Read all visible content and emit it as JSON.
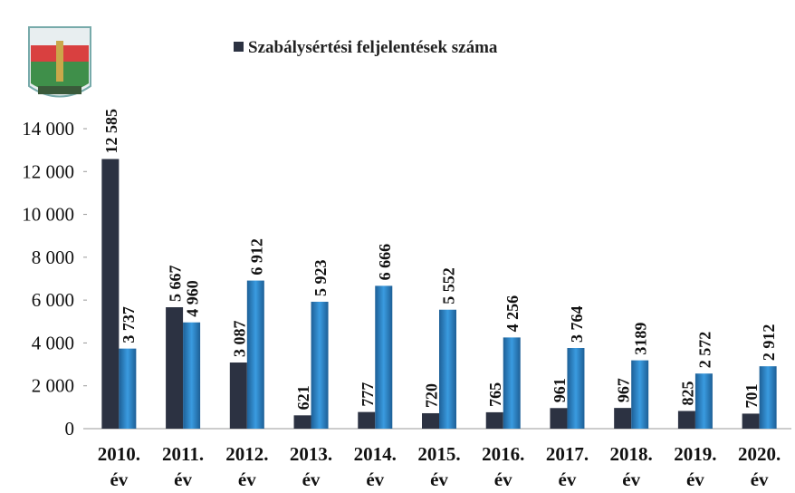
{
  "chart_data": {
    "type": "bar",
    "categories": [
      "2010. év",
      "2011. év",
      "2012. év",
      "2013. év",
      "2014. év",
      "2015. év",
      "2016. év",
      "2017. év",
      "2018. év",
      "2019. év",
      "2020. év"
    ],
    "series": [
      {
        "name": "Szabálysértési feljelentések száma",
        "color": "#2c3242",
        "values": [
          12585,
          5667,
          3087,
          621,
          777,
          720,
          765,
          961,
          967,
          825,
          701
        ],
        "value_labels": [
          "12 585",
          "5 667",
          "3 087",
          "621",
          "777",
          "720",
          "765",
          "961",
          "967",
          "825",
          "701"
        ]
      },
      {
        "color": "#2b82c6",
        "values": [
          3737,
          4960,
          6912,
          5923,
          6666,
          5552,
          4256,
          3764,
          3189,
          2572,
          2912
        ],
        "value_labels": [
          "3 737",
          "4 960",
          "6 912",
          "5 923",
          "6 666",
          "5 552",
          "4 256",
          "3 764",
          "3189",
          "2 572",
          "2 912"
        ]
      }
    ],
    "ylim": [
      0,
      14000
    ],
    "yticks": [
      0,
      {
        "value": 2000,
        "label": "2 000"
      },
      {
        "value": 4000,
        "label": "4 000"
      },
      {
        "value": 6000,
        "label": "6 000"
      },
      {
        "value": 8000,
        "label": "8 000"
      },
      {
        "value": 10000,
        "label": "10 000"
      },
      {
        "value": 12000,
        "label": "12 000"
      },
      {
        "value": 14000,
        "label": "14 000"
      }
    ],
    "grid": false
  }
}
